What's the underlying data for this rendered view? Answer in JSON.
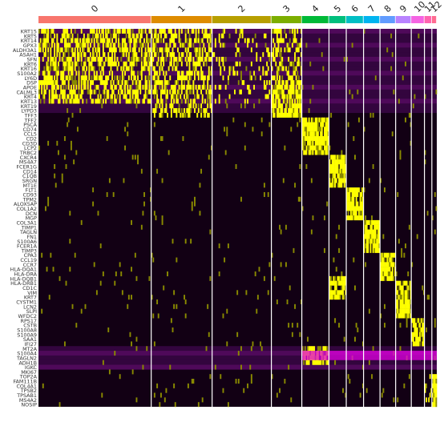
{
  "chart_data": {
    "type": "heatmap",
    "title": "",
    "xlabel": "",
    "ylabel": "",
    "groups": [
      {
        "label": "0",
        "color": "#F8766D",
        "relative_width": 137
      },
      {
        "label": "1",
        "color": "#DE8C00",
        "relative_width": 74
      },
      {
        "label": "2",
        "color": "#B79F00",
        "relative_width": 72
      },
      {
        "label": "3",
        "color": "#7CAE00",
        "relative_width": 37
      },
      {
        "label": "4",
        "color": "#00BA38",
        "relative_width": 33
      },
      {
        "label": "5",
        "color": "#00BF7D",
        "relative_width": 21
      },
      {
        "label": "6",
        "color": "#00BFC4",
        "relative_width": 21
      },
      {
        "label": "7",
        "color": "#00B4F0",
        "relative_width": 20
      },
      {
        "label": "8",
        "color": "#619CFF",
        "relative_width": 19
      },
      {
        "label": "9",
        "color": "#B983FF",
        "relative_width": 19
      },
      {
        "label": "10",
        "color": "#F564E3",
        "relative_width": 16
      },
      {
        "label": "11",
        "color": "#FF64B0",
        "relative_width": 9
      },
      {
        "label": "12",
        "color": "#FF6C91",
        "relative_width": 6
      }
    ],
    "genes": [
      "KRT15",
      "KRT5",
      "KRT14",
      "GPX3",
      "ALDH3A1",
      "ASAH1",
      "SFN",
      "KRT6",
      "KRT16",
      "S100A2",
      "LY6D",
      "DSP",
      "APOE",
      "CALML3",
      "KRT4",
      "KRT13",
      "KRT19",
      "LYPD3",
      "TFF3",
      "TFF2",
      "PSCA",
      "CD74",
      "CCL5",
      "CD2",
      "CD3D",
      "LCP2",
      "TRBC2",
      "CXCR4",
      "MS4A7",
      "FCER1G",
      "CD14",
      "C1QB",
      "SRGN",
      "MT1E",
      "FLT1",
      "CD93",
      "TPM2",
      "ALOX5AP",
      "COL1A2",
      "DCN",
      "MGP",
      "COL3A1",
      "TIMP1",
      "TAGLN",
      "FN1",
      "S100A6",
      "FCER1A",
      "TIMP3",
      "CPA3",
      "CCL19",
      "CCR7",
      "HLA-DQA1",
      "HLA-DRA",
      "HLA-DQB1",
      "HLA-DRB1",
      "CD1C",
      "VIM",
      "KRT7",
      "CYSTM1",
      "LCN2",
      "SLPI",
      "WFDC2",
      "RPS17",
      "CSTB",
      "S100A8",
      "S100A9",
      "SAA1",
      "IFI27",
      "MT2A",
      "S100A4",
      "TAGLN2",
      "ADH1B",
      "IGKC",
      "MKI67",
      "TOP2A",
      "FAM111B",
      "COL4A1",
      "TPSB2",
      "TPSAB1",
      "MS4A2",
      "NOSIP"
    ],
    "color_scale": {
      "low": "#FF00FF",
      "mid": "#000000",
      "high": "#FFFF00",
      "range": [
        -2,
        2
      ]
    },
    "legend": "none"
  }
}
